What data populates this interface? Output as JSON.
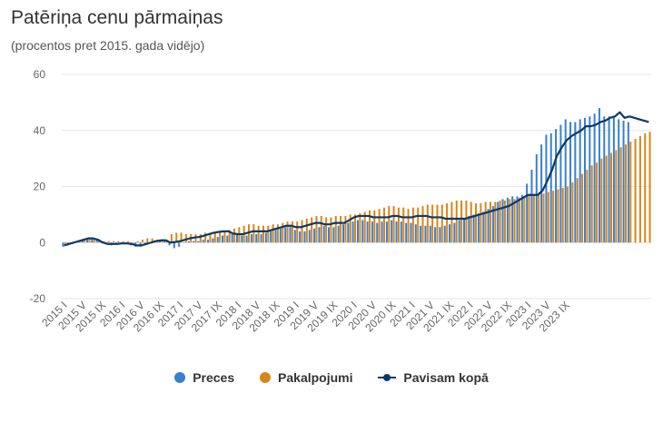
{
  "title": "Patēriņa cenu pārmaiņas",
  "subtitle": "(procentos pret 2015. gada vidējo)",
  "colors": {
    "preces": "#3a7fd0",
    "pakalpojumi": "#d8861a",
    "kopa": "#0c3868",
    "grid": "#e6e6e6"
  },
  "chart_data": {
    "type": "bar",
    "title": "Patēriņa cenu pārmaiņas",
    "subtitle": "(procentos pret 2015. gada vidējo)",
    "ylim": [
      -20,
      60
    ],
    "yticks": [
      -20,
      0,
      20,
      40,
      60
    ],
    "grid": true,
    "legend_position": "bottom",
    "start": "2015-01",
    "x_tick_labels": [
      "2015 I",
      "2015 V",
      "2015 IX",
      "2016 I",
      "2016 V",
      "2016 IX",
      "2017 I",
      "2017 V",
      "2017 IX",
      "2018 I",
      "2018 V",
      "2018 IX",
      "2019 I",
      "2019 V",
      "2019 IX",
      "2020 I",
      "2020 V",
      "2020 IX",
      "2021 I",
      "2021 V",
      "2021 IX",
      "2022 I",
      "2022 V",
      "2022 IX",
      "2023 I",
      "2023 V",
      "2023 IX"
    ],
    "series": [
      {
        "name": "Preces",
        "type": "bar",
        "values": [
          -1.5,
          -1,
          -0.5,
          0.5,
          1,
          1.5,
          1.5,
          1,
          0,
          -0.5,
          -1,
          -0.5,
          -0.5,
          -0.5,
          -1,
          -1.5,
          -1.5,
          -0.5,
          0,
          0.5,
          0.5,
          0.5,
          -1,
          -2,
          -1.5,
          0,
          0.5,
          0.5,
          0.5,
          1,
          1,
          1.5,
          2,
          2.5,
          2.5,
          3,
          3,
          2.5,
          2.5,
          3,
          3,
          3,
          3.5,
          4,
          4.5,
          5,
          5.5,
          5.5,
          4.5,
          4,
          4,
          4.5,
          5,
          5.5,
          6,
          5.5,
          5.5,
          6,
          6.5,
          7,
          7.5,
          8,
          8,
          7.5,
          7.5,
          7,
          7.5,
          7.5,
          8,
          7.5,
          7.5,
          7,
          7,
          6.5,
          6,
          6,
          6,
          5.5,
          5.5,
          6,
          6.5,
          7,
          8,
          8.5,
          9.5,
          10,
          10.5,
          11,
          12,
          13,
          14.5,
          15.5,
          16,
          16.5,
          16.5,
          17,
          21,
          26,
          31.5,
          35,
          38.5,
          39,
          40.5,
          42,
          44,
          43,
          43,
          44,
          44.5,
          45,
          46,
          48,
          45,
          45,
          44.5,
          44,
          43.5,
          43
        ]
      },
      {
        "name": "Pakalpojumi",
        "type": "bar",
        "values": [
          -0.5,
          0,
          0.3,
          0.6,
          1,
          1.2,
          1,
          0.5,
          0.5,
          0.5,
          0.5,
          0.5,
          0.5,
          0.5,
          0,
          0.5,
          1,
          1.5,
          1.5,
          1,
          1,
          1,
          3,
          3.5,
          3.5,
          3,
          3,
          3,
          3,
          3.5,
          3.5,
          3.5,
          4,
          4,
          4.5,
          5,
          5.5,
          6,
          6.5,
          6.5,
          6,
          6,
          6,
          6.5,
          6.5,
          7,
          7.5,
          7.5,
          7.5,
          8,
          8.5,
          9,
          9.5,
          9.5,
          9,
          9,
          9.5,
          9.5,
          9.5,
          10,
          10,
          10.5,
          11,
          11.5,
          11.5,
          12,
          12.5,
          13,
          13,
          12.5,
          12.5,
          12,
          12.5,
          12.5,
          13,
          13.5,
          13.5,
          13.5,
          13.5,
          14,
          14.5,
          15,
          15,
          15,
          14.5,
          14,
          14,
          14.5,
          14.5,
          14.5,
          15,
          15,
          15.5,
          15.5,
          16,
          16.5,
          17,
          17,
          17.5,
          17.5,
          18,
          18.5,
          19,
          19.5,
          20,
          21.5,
          23,
          24.5,
          26,
          27.5,
          28.5,
          30,
          31,
          32,
          33,
          34,
          35,
          36,
          37,
          38,
          39,
          39.5,
          39,
          38.5,
          39
        ]
      },
      {
        "name": "Pavisam kopā",
        "type": "line",
        "values": [
          -1,
          -0.5,
          0,
          0.5,
          1,
          1.5,
          1.5,
          1,
          0,
          -0.5,
          -0.5,
          -0.5,
          -0.3,
          -0.3,
          -0.5,
          -1,
          -1,
          -0.5,
          0,
          0.5,
          0.8,
          0.8,
          0,
          0.2,
          0.5,
          1,
          1.5,
          1.8,
          2,
          2.5,
          3,
          3.5,
          3.8,
          4,
          4,
          3.2,
          3,
          3,
          3.5,
          4,
          4,
          4,
          4,
          4.5,
          5,
          5.5,
          6,
          6,
          5.5,
          5.5,
          6,
          6.5,
          7,
          7,
          6.5,
          6.5,
          7,
          7,
          7,
          8,
          9,
          9.5,
          9.5,
          9.5,
          9,
          9,
          9,
          9,
          9.5,
          9.5,
          9,
          9,
          9,
          9.5,
          9.5,
          9.5,
          9,
          9,
          9,
          8.5,
          8.5,
          8.5,
          8.5,
          8.5,
          9,
          9.5,
          10,
          10.5,
          11,
          11.5,
          12,
          12.5,
          13,
          14,
          15,
          16,
          17,
          17,
          17,
          18.5,
          22,
          26,
          31,
          34,
          36.5,
          38,
          39,
          40,
          41.5,
          41.5,
          42,
          43,
          43.5,
          44.5,
          45,
          46.5,
          44.5,
          45,
          44.5,
          44,
          43.5,
          43
        ]
      }
    ]
  }
}
